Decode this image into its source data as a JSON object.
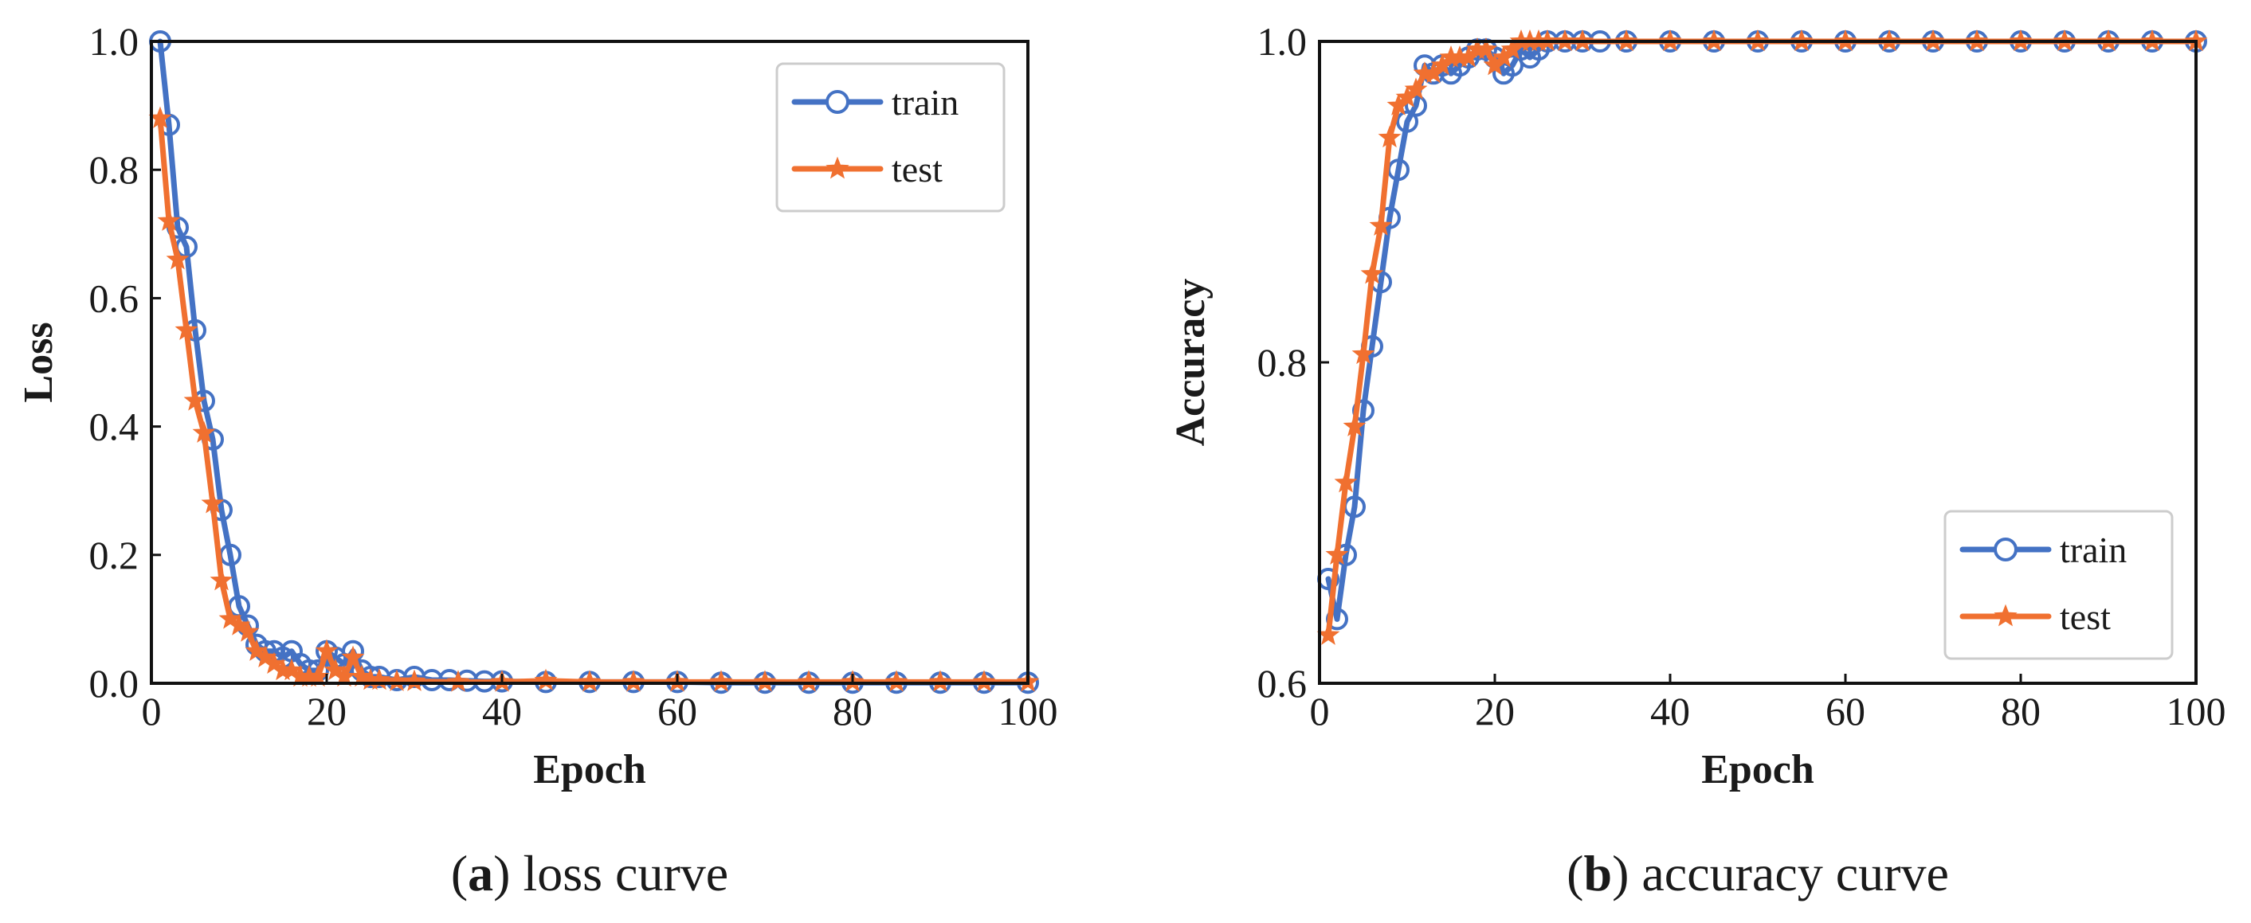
{
  "chart_data": [
    {
      "type": "line",
      "caption_letter": "a",
      "caption_text": "loss curve",
      "xlabel": "Epoch",
      "ylabel": "Loss",
      "xlim": [
        0,
        100
      ],
      "ylim": [
        0,
        1.0
      ],
      "xticks": [
        "0",
        "20",
        "40",
        "60",
        "80",
        "100"
      ],
      "yticks": [
        "0.0",
        "0.2",
        "0.4",
        "0.6",
        "0.8",
        "1.0"
      ],
      "legend_position": "top-right",
      "series": [
        {
          "name": "train",
          "color": "#4472c4",
          "marker": "circle",
          "x": [
            1,
            2,
            3,
            4,
            5,
            6,
            7,
            8,
            9,
            10,
            11,
            12,
            13,
            14,
            15,
            16,
            17,
            18,
            19,
            20,
            21,
            22,
            23,
            24,
            25,
            26,
            28,
            30,
            32,
            34,
            36,
            38,
            40,
            45,
            50,
            55,
            60,
            65,
            70,
            75,
            80,
            85,
            90,
            95,
            100
          ],
          "values": [
            1.0,
            0.87,
            0.71,
            0.68,
            0.55,
            0.44,
            0.38,
            0.27,
            0.2,
            0.12,
            0.09,
            0.06,
            0.05,
            0.05,
            0.04,
            0.05,
            0.03,
            0.02,
            0.02,
            0.05,
            0.04,
            0.03,
            0.05,
            0.02,
            0.01,
            0.01,
            0.005,
            0.01,
            0.005,
            0.005,
            0.004,
            0.003,
            0.003,
            0.002,
            0.002,
            0.002,
            0.002,
            0.001,
            0.001,
            0.001,
            0.001,
            0.001,
            0.001,
            0.001,
            0.001
          ]
        },
        {
          "name": "test",
          "color": "#f07030",
          "marker": "star",
          "x": [
            1,
            2,
            3,
            4,
            5,
            6,
            7,
            8,
            9,
            10,
            11,
            12,
            13,
            14,
            15,
            16,
            17,
            18,
            19,
            20,
            21,
            22,
            23,
            24,
            25,
            26,
            28,
            30,
            35,
            40,
            45,
            50,
            55,
            60,
            65,
            70,
            75,
            80,
            85,
            90,
            95,
            100
          ],
          "values": [
            0.88,
            0.72,
            0.66,
            0.55,
            0.44,
            0.39,
            0.28,
            0.16,
            0.1,
            0.09,
            0.08,
            0.05,
            0.04,
            0.03,
            0.02,
            0.02,
            0.01,
            0.01,
            0.01,
            0.05,
            0.02,
            0.01,
            0.04,
            0.01,
            0.005,
            0.005,
            0.003,
            0.003,
            0.002,
            0.002,
            0.004,
            0.002,
            0.002,
            0.002,
            0.002,
            0.002,
            0.002,
            0.002,
            0.002,
            0.002,
            0.002,
            0.002
          ]
        }
      ]
    },
    {
      "type": "line",
      "caption_letter": "b",
      "caption_text": "accuracy curve",
      "xlabel": "Epoch",
      "ylabel": "Accuracy",
      "xlim": [
        0,
        100
      ],
      "ylim": [
        0.6,
        1.0
      ],
      "xticks": [
        "0",
        "20",
        "40",
        "60",
        "80",
        "100"
      ],
      "yticks": [
        "0.6",
        "0.8",
        "1.0"
      ],
      "legend_position": "bottom-right",
      "series": [
        {
          "name": "train",
          "color": "#4472c4",
          "marker": "circle",
          "x": [
            1,
            2,
            3,
            4,
            5,
            6,
            7,
            8,
            9,
            10,
            11,
            12,
            13,
            14,
            15,
            16,
            17,
            18,
            19,
            20,
            21,
            22,
            23,
            24,
            25,
            26,
            28,
            30,
            32,
            35,
            40,
            45,
            50,
            55,
            60,
            65,
            70,
            75,
            80,
            85,
            90,
            95,
            100
          ],
          "values": [
            0.665,
            0.64,
            0.68,
            0.71,
            0.77,
            0.81,
            0.85,
            0.89,
            0.92,
            0.95,
            0.96,
            0.985,
            0.98,
            0.985,
            0.98,
            0.985,
            0.99,
            0.995,
            0.995,
            0.99,
            0.98,
            0.985,
            0.995,
            0.99,
            0.995,
            1.0,
            1.0,
            1.0,
            1.0,
            1.0,
            1.0,
            1.0,
            1.0,
            1.0,
            1.0,
            1.0,
            1.0,
            1.0,
            1.0,
            1.0,
            1.0,
            1.0,
            1.0
          ]
        },
        {
          "name": "test",
          "color": "#f07030",
          "marker": "star",
          "x": [
            1,
            2,
            3,
            4,
            5,
            6,
            7,
            8,
            9,
            10,
            11,
            12,
            13,
            14,
            15,
            16,
            17,
            18,
            19,
            20,
            21,
            22,
            23,
            24,
            25,
            26,
            28,
            30,
            35,
            40,
            45,
            50,
            55,
            60,
            65,
            70,
            75,
            80,
            85,
            90,
            95,
            100
          ],
          "values": [
            0.63,
            0.68,
            0.725,
            0.76,
            0.805,
            0.855,
            0.885,
            0.94,
            0.96,
            0.965,
            0.97,
            0.98,
            0.98,
            0.985,
            0.99,
            0.99,
            0.99,
            0.995,
            0.995,
            0.985,
            0.99,
            0.995,
            1.0,
            1.0,
            1.0,
            1.0,
            1.0,
            1.0,
            1.0,
            1.0,
            1.0,
            1.0,
            1.0,
            1.0,
            1.0,
            1.0,
            1.0,
            1.0,
            1.0,
            1.0,
            1.0,
            1.0
          ]
        }
      ]
    }
  ]
}
